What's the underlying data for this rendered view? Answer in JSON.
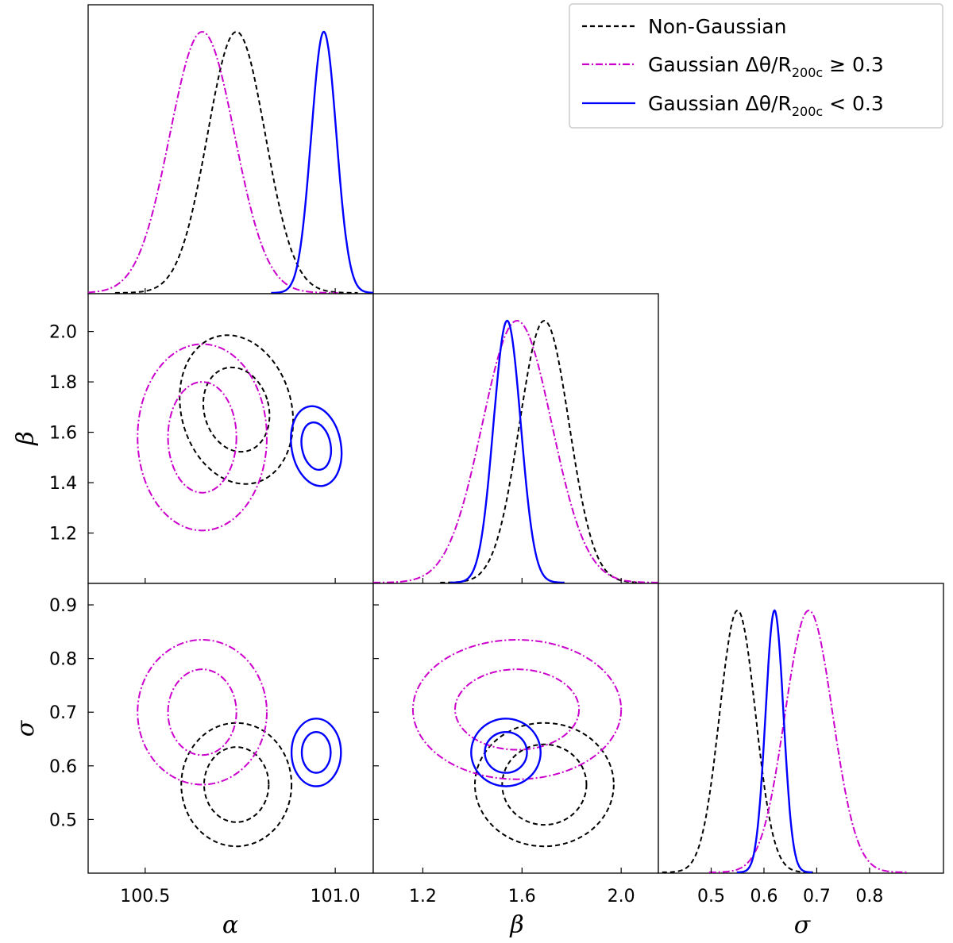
{
  "legend": {
    "items": [
      {
        "text": "Non-Gaussian",
        "color": "#000000",
        "dash": "dashed"
      },
      {
        "text_main": "Gaussian Δθ/R",
        "text_sub": "200c",
        "text_tail": " ≥ 0.3",
        "color": "#cc00cc",
        "dash": "dashdot"
      },
      {
        "text_main": "Gaussian Δθ/R",
        "text_sub": "200c",
        "text_tail": " < 0.3",
        "color": "#0000ff",
        "dash": "solid"
      }
    ]
  },
  "axis_labels": {
    "alpha": "α",
    "beta": "β",
    "sigma": "σ"
  },
  "chart_data": {
    "type": "corner",
    "parameters": [
      "α",
      "β",
      "σ"
    ],
    "ranges": {
      "alpha": [
        100.35,
        101.1
      ],
      "beta": [
        1.0,
        2.15
      ],
      "sigma": [
        0.4,
        0.94
      ]
    },
    "ticks": {
      "alpha": [
        "100.5",
        "101.0"
      ],
      "beta": [
        "1.2",
        "1.4",
        "1.6",
        "1.8",
        "2.0"
      ],
      "beta_x": [
        "1.2",
        "1.6",
        "2.0"
      ],
      "sigma": [
        "0.5",
        "0.6",
        "0.7",
        "0.8",
        "0.9"
      ],
      "sigma_x": [
        "0.5",
        "0.6",
        "0.7",
        "0.8"
      ]
    },
    "series": [
      {
        "name": "Non-Gaussian",
        "color": "#000000",
        "dash": "dashed",
        "alpha": {
          "mean": 100.74,
          "sd": 0.076
        },
        "beta": {
          "mean": 1.69,
          "sd": 0.1
        },
        "sigma": {
          "mean": 0.55,
          "sd": 0.034
        },
        "alpha_beta": {
          "center": [
            100.74,
            1.69
          ],
          "inner": [
            0.085,
            0.17
          ],
          "outer": [
            0.145,
            0.3
          ],
          "tilt": -15
        },
        "alpha_sigma": {
          "center": [
            100.74,
            0.565
          ],
          "inner": [
            0.085,
            0.07
          ],
          "outer": [
            0.145,
            0.115
          ],
          "tilt": 0
        },
        "beta_sigma": {
          "center": [
            1.69,
            0.565
          ],
          "inner": [
            0.17,
            0.075
          ],
          "outer": [
            0.28,
            0.115
          ],
          "tilt": 0
        }
      },
      {
        "name": "Gaussian Δθ/R200c ≥ 0.3",
        "color": "#cc00cc",
        "dash": "dashdot",
        "alpha": {
          "mean": 100.65,
          "sd": 0.085
        },
        "beta": {
          "mean": 1.58,
          "sd": 0.14
        },
        "sigma": {
          "mean": 0.685,
          "sd": 0.045
        },
        "alpha_beta": {
          "center": [
            100.65,
            1.58
          ],
          "inner": [
            0.09,
            0.22
          ],
          "outer": [
            0.17,
            0.37
          ],
          "tilt": 0
        },
        "alpha_sigma": {
          "center": [
            100.65,
            0.7
          ],
          "inner": [
            0.09,
            0.08
          ],
          "outer": [
            0.17,
            0.135
          ],
          "tilt": 0
        },
        "beta_sigma": {
          "center": [
            1.58,
            0.705
          ],
          "inner": [
            0.25,
            0.075
          ],
          "outer": [
            0.42,
            0.13
          ],
          "tilt": 0
        }
      },
      {
        "name": "Gaussian Δθ/R200c < 0.3",
        "color": "#0000ff",
        "dash": "solid",
        "alpha": {
          "mean": 100.97,
          "sd": 0.033
        },
        "beta": {
          "mean": 1.54,
          "sd": 0.055
        },
        "sigma": {
          "mean": 0.62,
          "sd": 0.017
        },
        "alpha_beta": {
          "center": [
            100.95,
            1.545
          ],
          "inner": [
            0.038,
            0.095
          ],
          "outer": [
            0.065,
            0.16
          ],
          "tilt": -10
        },
        "alpha_sigma": {
          "center": [
            100.95,
            0.625
          ],
          "inner": [
            0.038,
            0.038
          ],
          "outer": [
            0.065,
            0.063
          ],
          "tilt": 0
        },
        "beta_sigma": {
          "center": [
            1.535,
            0.625
          ],
          "inner": [
            0.085,
            0.038
          ],
          "outer": [
            0.14,
            0.063
          ],
          "tilt": 0
        }
      }
    ]
  }
}
